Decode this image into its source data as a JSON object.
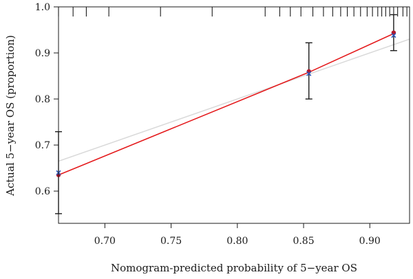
{
  "chart_data": {
    "type": "scatter",
    "title": "",
    "xlabel": "Nomogram-predicted probability of 5−year OS",
    "ylabel": "Actual 5−year OS (proportion)",
    "xlim": [
      0.665,
      0.93
    ],
    "ylim": [
      0.53,
      1.0
    ],
    "x_ticks": [
      0.7,
      0.75,
      0.8,
      0.85,
      0.9
    ],
    "x_tick_labels": [
      "0.70",
      "0.75",
      "0.80",
      "0.85",
      "0.90"
    ],
    "y_ticks": [
      0.6,
      0.7,
      0.8,
      0.9,
      1.0
    ],
    "y_tick_labels": [
      "0.6",
      "0.7",
      "0.8",
      "0.9",
      "1.0"
    ],
    "grid": false,
    "reference_line": {
      "from": [
        0.65,
        0.65
      ],
      "to": [
        0.93,
        0.93
      ],
      "color": "#d9d9d9"
    },
    "calibration_line": {
      "x": [
        0.665,
        0.854,
        0.918
      ],
      "y": [
        0.635,
        0.858,
        0.942
      ],
      "color": "#e41a1c"
    },
    "observed_points": {
      "x": [
        0.665,
        0.854,
        0.918
      ],
      "y": [
        0.635,
        0.86,
        0.944
      ],
      "color": "#b2182b"
    },
    "bias_corrected_points": {
      "x": [
        0.665,
        0.854,
        0.918
      ],
      "y": [
        0.64,
        0.855,
        0.938
      ],
      "color": "#2b55b8"
    },
    "error_bars": [
      {
        "x": 0.665,
        "lower": 0.551,
        "upper": 0.729
      },
      {
        "x": 0.854,
        "lower": 0.8,
        "upper": 0.922
      },
      {
        "x": 0.918,
        "lower": 0.905,
        "upper": 0.983
      }
    ],
    "rug_top_x": [
      0.665,
      0.676,
      0.686,
      0.703,
      0.742,
      0.781,
      0.821,
      0.832,
      0.84,
      0.848,
      0.857,
      0.865,
      0.872,
      0.878,
      0.883,
      0.888,
      0.893,
      0.898,
      0.902,
      0.906,
      0.909,
      0.912,
      0.915,
      0.918,
      0.921,
      0.925,
      0.928
    ]
  }
}
